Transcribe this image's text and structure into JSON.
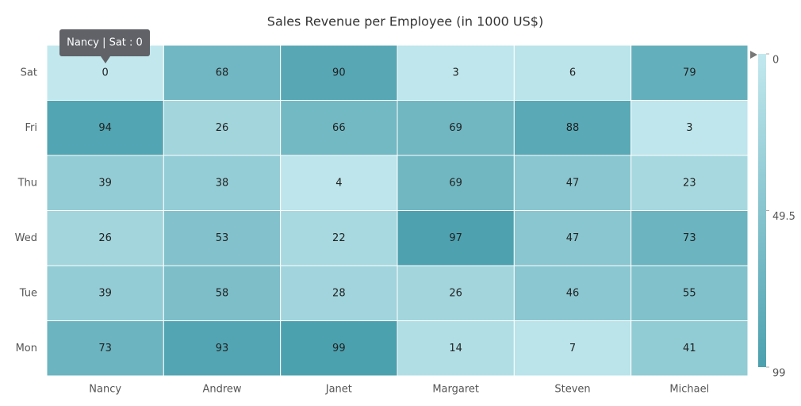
{
  "chart_data": {
    "type": "heatmap",
    "title": "Sales Revenue per Employee (in 1000 US$)",
    "x_categories": [
      "Nancy",
      "Andrew",
      "Janet",
      "Margaret",
      "Steven",
      "Michael"
    ],
    "y_categories": [
      "Sat",
      "Fri",
      "Thu",
      "Wed",
      "Tue",
      "Mon"
    ],
    "values": [
      [
        0,
        68,
        90,
        3,
        6,
        79
      ],
      [
        94,
        26,
        66,
        69,
        88,
        3
      ],
      [
        39,
        38,
        4,
        69,
        47,
        23
      ],
      [
        26,
        53,
        22,
        97,
        47,
        73
      ],
      [
        39,
        58,
        28,
        26,
        46,
        55
      ],
      [
        73,
        93,
        99,
        14,
        7,
        41
      ]
    ],
    "colorbar": {
      "lim": [
        0,
        99
      ],
      "ticks": [
        0,
        49.5,
        99
      ],
      "colors": [
        "#c2e8ee",
        "#4ca1af"
      ]
    },
    "tooltip": "Nancy | Sat : 0"
  }
}
